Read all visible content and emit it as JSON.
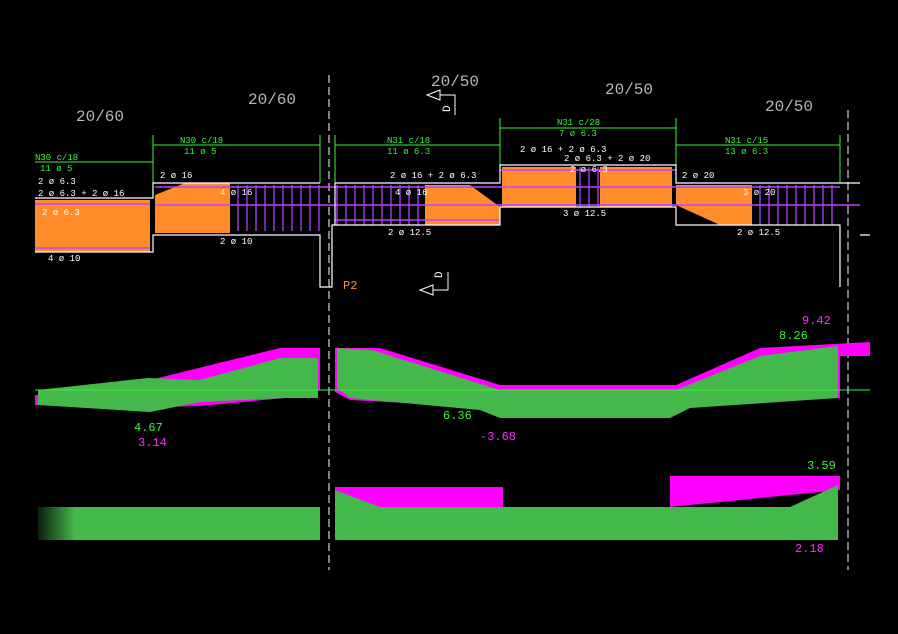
{
  "sections": [
    "20/60",
    "20/60",
    "20/50",
    "20/50",
    "20/50"
  ],
  "span1": {
    "stirrups": "N30 c/18",
    "stirrup_count": "11 ø 5",
    "top1": "2 ø 6.3",
    "top2": "2 ø 6.3 + 2 ø 16",
    "mid": "2 ø 6.3",
    "bottom": "4 ø 10"
  },
  "span2": {
    "stirrups": "N30 c/18",
    "stirrup_count": "11 ø 5",
    "top": "2 ø 16",
    "mid": "4 ø 16",
    "bottom": "2 ø 10"
  },
  "span3": {
    "stirrups": "N31 c/18",
    "stirrup_count": "11 ø 6.3",
    "top": "2 ø 16 + 2 ø 6.3",
    "mid": "4 ø 16",
    "bottom": "2 ø 12.5"
  },
  "span4": {
    "stirrups": "N31 c/28",
    "stirrup_count": "7 ø 6.3",
    "top1": "2 ø 16 + 2 ø 6.3",
    "top2": "2 ø 6.3 + 2 ø 20",
    "top3": "2 ø 6.3",
    "bottom": "3 ø 12.5"
  },
  "span5": {
    "stirrups": "N31 c/15",
    "stirrup_count": "13 ø 6.3",
    "top": "2 ø 20",
    "mid": "3 ø 20",
    "bottom": "2 ø 12.5"
  },
  "support": "P2",
  "cut_mark": "D",
  "moment_labels": [
    "9.42",
    "8.26",
    "4.67",
    "3.14",
    "6.36",
    "-3.68"
  ],
  "shear_labels": [
    "3.59",
    "2.18"
  ]
}
